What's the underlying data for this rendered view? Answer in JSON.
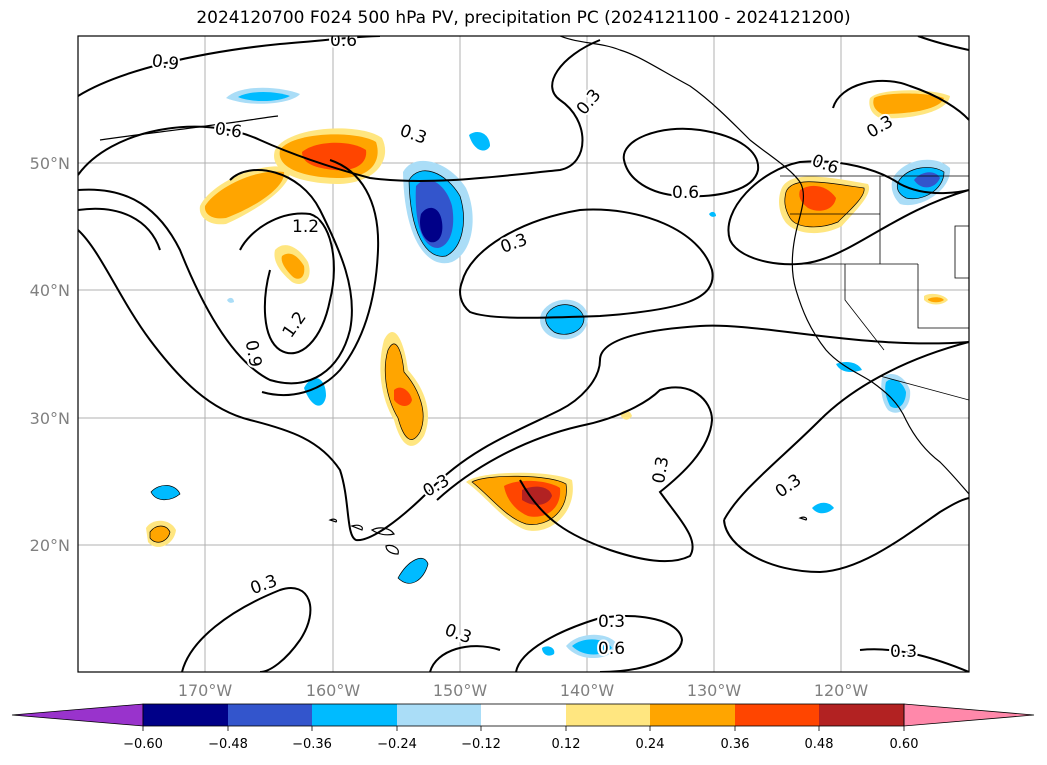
{
  "title": "2024120700 F024 500 hPa PV, precipitation PC (2024121100 - 2024121200)",
  "map": {
    "lat_labels": [
      "50°N",
      "40°N",
      "30°N",
      "20°N"
    ],
    "lon_labels": [
      "170°W",
      "160°W",
      "150°W",
      "140°W",
      "130°W",
      "120°W"
    ],
    "contour_labels": [
      "0.9",
      "0.6",
      "0.6",
      "0.3",
      "0.3",
      "0.6",
      "0.6",
      "0.3",
      "1.2",
      "1.2",
      "0.9",
      "0.3",
      "0.3",
      "0.3",
      "0.3",
      "0.3",
      "0.3",
      "0.6",
      "0.3",
      "0.3"
    ]
  },
  "colorbar": {
    "ticks": [
      "−0.60",
      "−0.48",
      "−0.36",
      "−0.24",
      "−0.12",
      "0.12",
      "0.24",
      "0.36",
      "0.48",
      "0.60"
    ],
    "colors": [
      "#9933cc",
      "#000088",
      "#3355cc",
      "#00bbff",
      "#aaddf7",
      "#ffffff",
      "#ffe680",
      "#ffa500",
      "#ff4500",
      "#b22222",
      "#ff88aa"
    ]
  }
}
